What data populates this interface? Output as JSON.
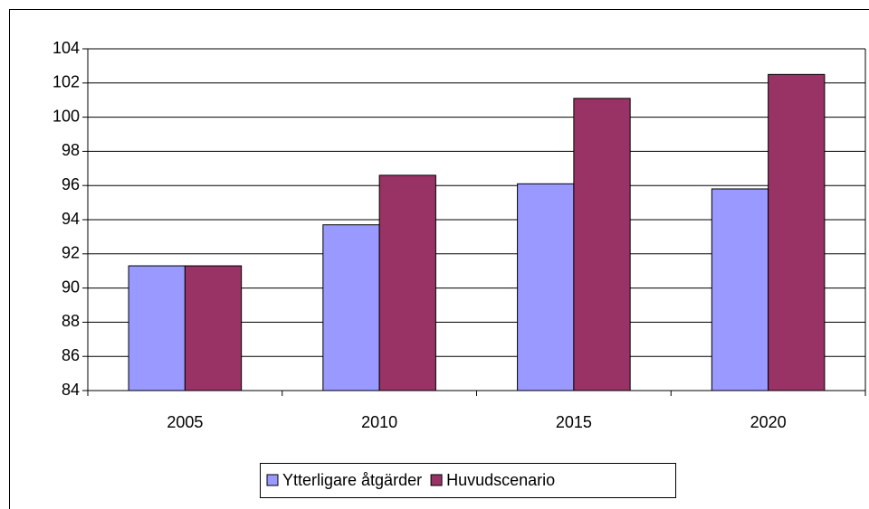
{
  "chart_data": {
    "type": "bar",
    "categories": [
      "2005",
      "2010",
      "2015",
      "2020"
    ],
    "series": [
      {
        "name": "Ytterligare åtgärder",
        "color": "#9999ff",
        "values": [
          91.3,
          93.7,
          96.1,
          95.8
        ]
      },
      {
        "name": "Huvudscenario",
        "color": "#993366",
        "values": [
          91.3,
          96.6,
          101.1,
          102.5
        ]
      }
    ],
    "ylim": [
      84,
      104
    ],
    "yticks": [
      84,
      86,
      88,
      90,
      92,
      94,
      96,
      98,
      100,
      102,
      104
    ],
    "grid": true,
    "legend": "bottom"
  }
}
